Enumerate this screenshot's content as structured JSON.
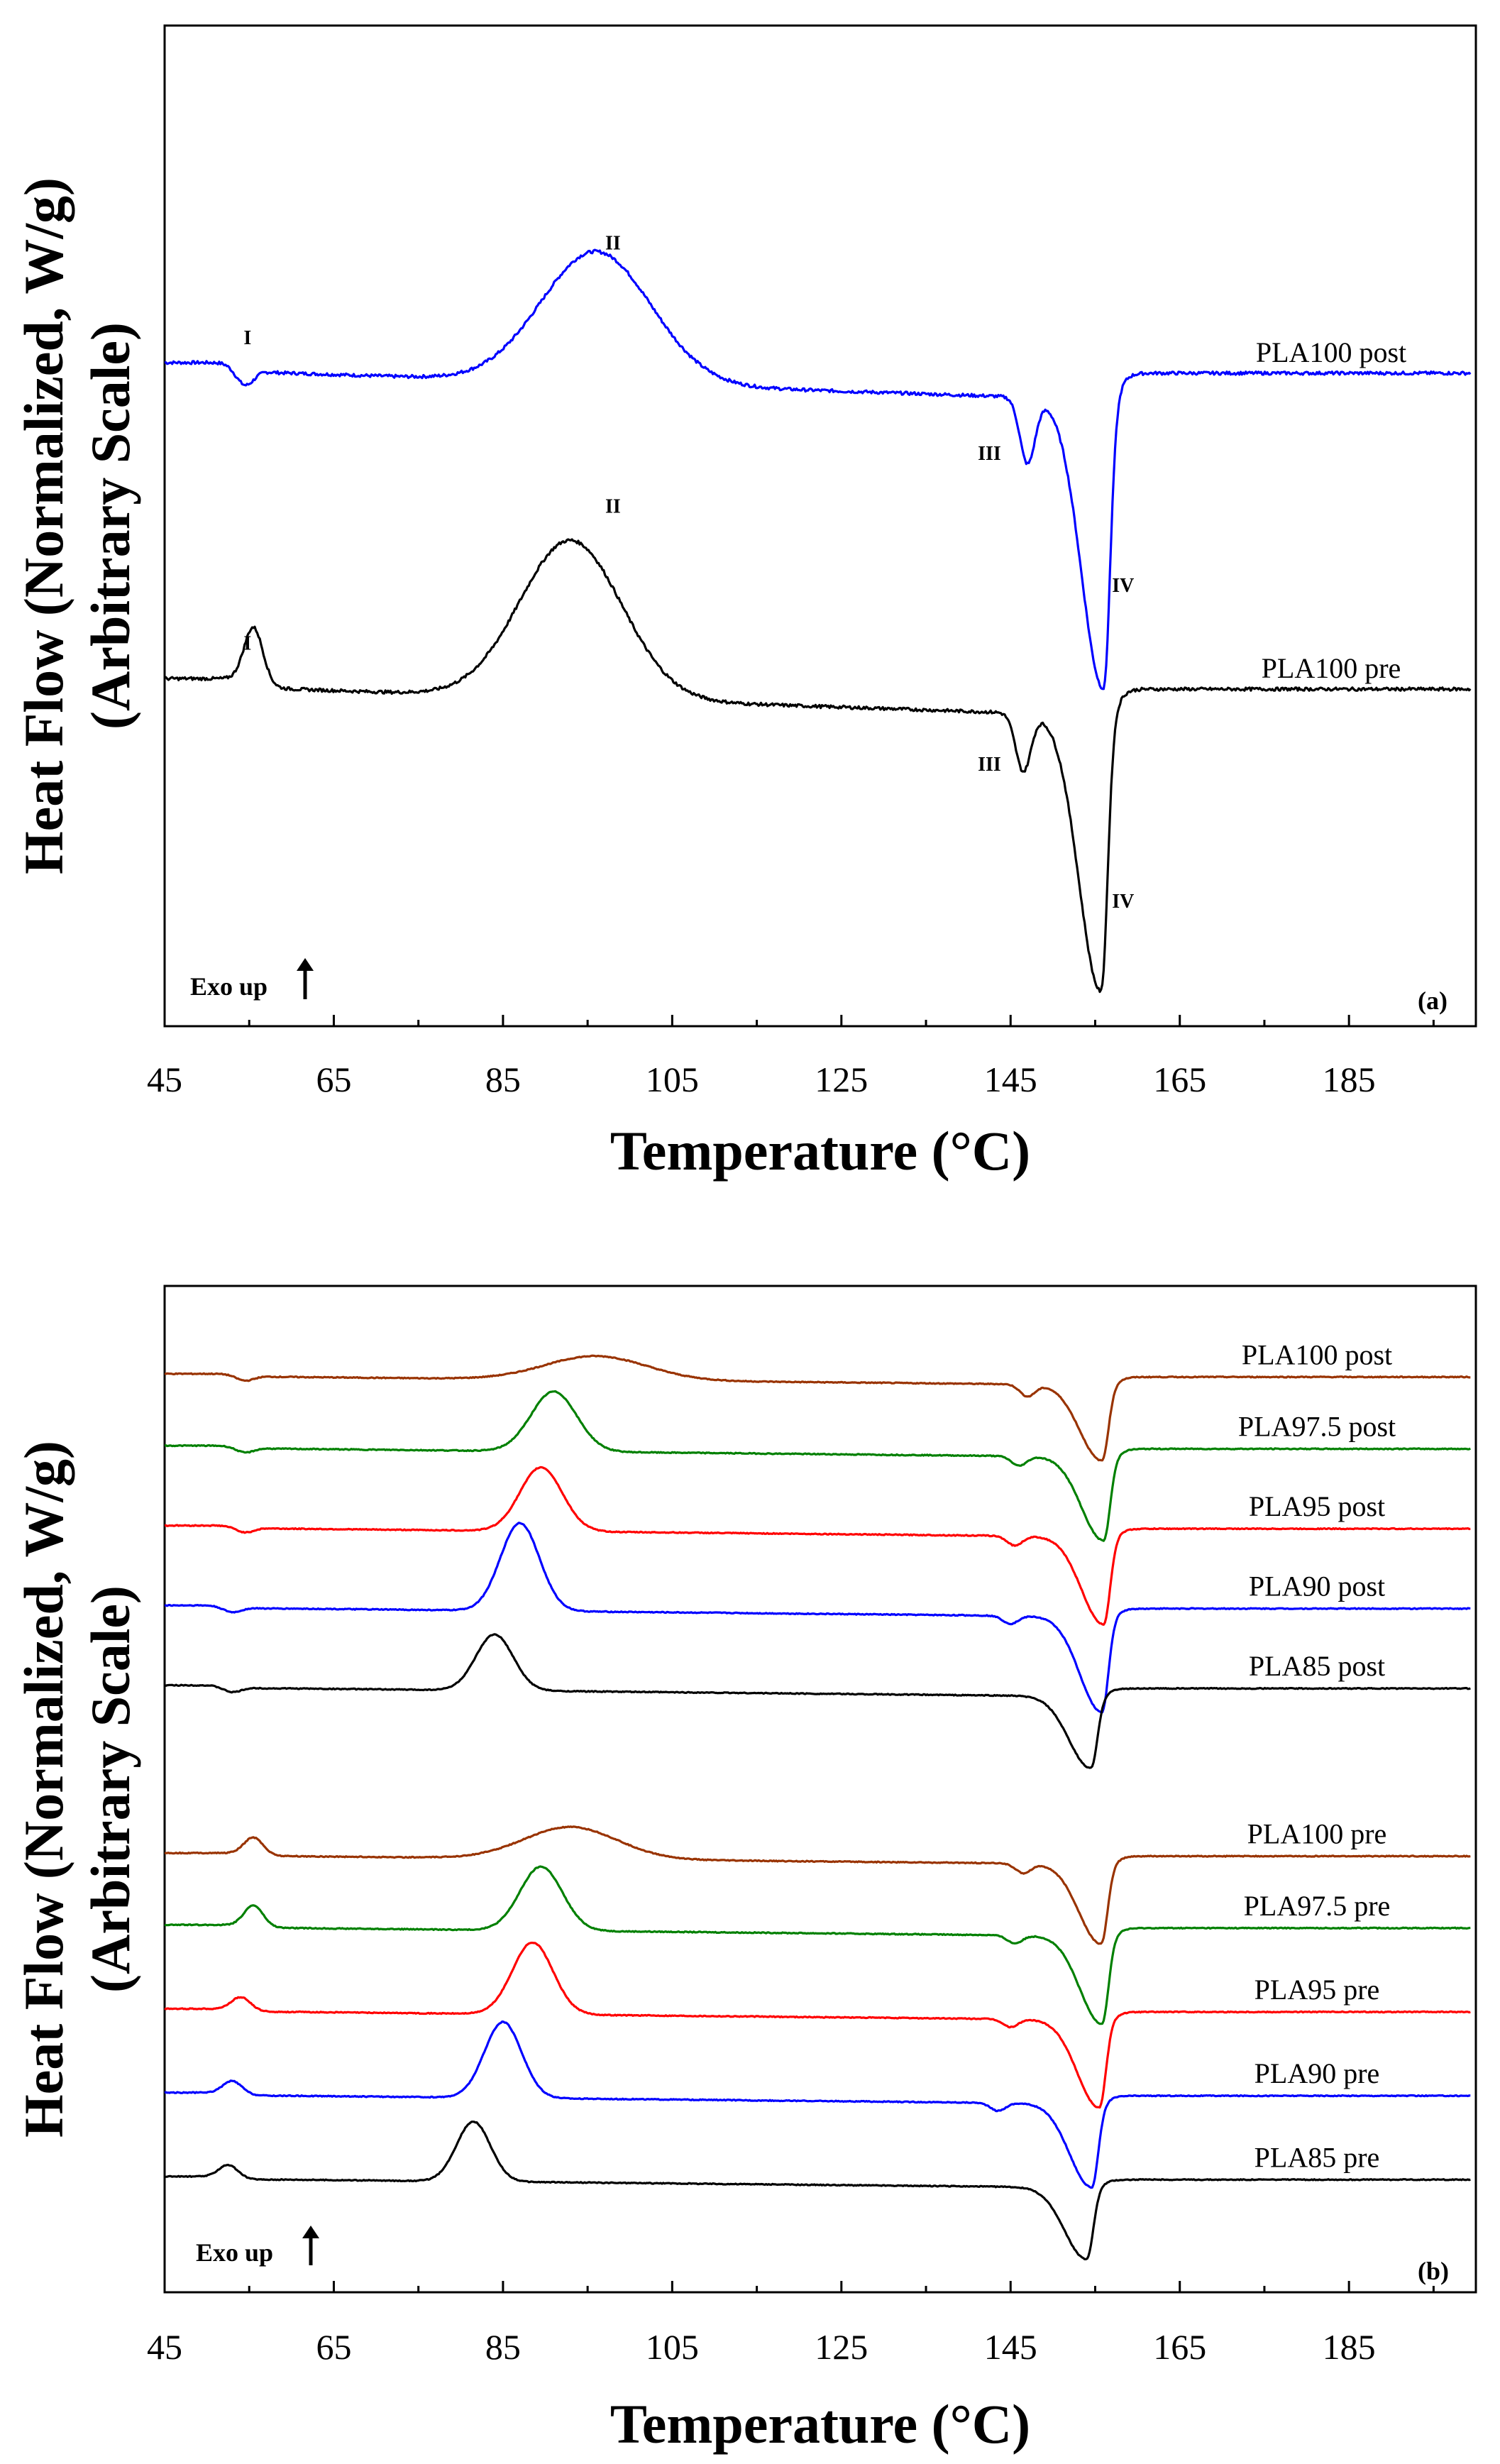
{
  "chart_data": [
    {
      "type": "line",
      "panel": "(a)",
      "xlabel": "Temperature (°C)",
      "ylabel_line1": "Heat Flow (Normalized, W/g)",
      "ylabel_line2": "(Arbitrary Scale)",
      "xlim": [
        45,
        200
      ],
      "xticks": [
        45,
        65,
        85,
        105,
        125,
        145,
        165,
        185
      ],
      "annotation": "Exo up",
      "series": [
        {
          "name": "PLA100 post",
          "color": "#0000ff",
          "offset": 0.62,
          "glass": [
            54.5,
            -0.08
          ],
          "cold": [
            96,
            0.5,
            6.5
          ],
          "m1": [
            147,
            -0.25
          ],
          "m2": [
            156,
            -1.1
          ],
          "baseline": [
            0.0,
            0.0
          ]
        },
        {
          "name": "PLA100 pre",
          "color": "#000000",
          "offset": -0.58,
          "glass": [
            55.5,
            0.2
          ],
          "cold": [
            93,
            0.6,
            6
          ],
          "m1": [
            146.5,
            -0.22
          ],
          "m2": [
            155.7,
            -1.05
          ],
          "baseline": [
            0.0,
            0.0
          ]
        }
      ],
      "peak_labels": [
        {
          "label": "I",
          "x": 54.8,
          "y": 0.69
        },
        {
          "label": "II",
          "x": 98,
          "y": 1.05
        },
        {
          "label": "III",
          "x": 142.5,
          "y": 0.25
        },
        {
          "label": "IV",
          "x": 158.3,
          "y": -0.25
        },
        {
          "label": "I",
          "x": 54.8,
          "y": -0.47
        },
        {
          "label": "II",
          "x": 98,
          "y": 0.05
        },
        {
          "label": "III",
          "x": 142.5,
          "y": -0.93
        },
        {
          "label": "IV",
          "x": 158.3,
          "y": -1.45
        }
      ]
    },
    {
      "type": "line",
      "panel": "(b)",
      "xlabel": "Temperature (°C)",
      "ylabel_line1": "Heat Flow (Normalized, W/g)",
      "ylabel_line2": "(Arbitrary Scale)",
      "xlim": [
        45,
        200
      ],
      "xticks": [
        45,
        65,
        85,
        105,
        125,
        145,
        165,
        185
      ],
      "annotation": "Exo up",
      "series": [
        {
          "name": "PLA100 post",
          "color": "#993300",
          "offset": 4.5,
          "glass": [
            54.5,
            -0.08
          ],
          "cold": [
            96,
            0.3,
            6
          ],
          "m1": [
            147,
            -0.15
          ],
          "m2": [
            155.8,
            -0.95
          ],
          "baseline": [
            0.0,
            0.0
          ]
        },
        {
          "name": "PLA97.5 post",
          "color": "#008000",
          "offset": 3.6,
          "glass": [
            54.5,
            -0.08
          ],
          "cold": [
            91,
            0.75,
            2.7
          ],
          "m1": [
            146,
            -0.12
          ],
          "m2": [
            156,
            -1.05
          ],
          "baseline": [
            0.0,
            0.0
          ]
        },
        {
          "name": "PLA95 post",
          "color": "#ff0000",
          "offset": 2.6,
          "glass": [
            54.5,
            -0.08
          ],
          "cold": [
            89.5,
            0.8,
            2.5
          ],
          "m1": [
            145.5,
            -0.12
          ],
          "m2": [
            156,
            -1.1
          ],
          "baseline": [
            0.0,
            0.0
          ]
        },
        {
          "name": "PLA90 post",
          "color": "#0000ff",
          "offset": 1.6,
          "glass": [
            53,
            -0.08
          ],
          "cold": [
            87,
            1.1,
            2.3
          ],
          "m1": [
            145,
            -0.1
          ],
          "m2": [
            155.8,
            -1.2
          ],
          "baseline": [
            0.0,
            0.0
          ]
        },
        {
          "name": "PLA85 post",
          "color": "#000000",
          "offset": 0.6,
          "glass": [
            53,
            -0.08
          ],
          "cold": [
            84,
            0.7,
            2.2
          ],
          "m1": [
            146,
            0.0
          ],
          "m2": [
            154.5,
            -0.9
          ],
          "baseline": [
            0.0,
            0.0
          ]
        },
        {
          "name": "PLA100 pre",
          "color": "#993300",
          "offset": -1.5,
          "glass": [
            55.5,
            0.2
          ],
          "cold": [
            93,
            0.4,
            5.5
          ],
          "m1": [
            146.5,
            -0.12
          ],
          "m2": [
            155.7,
            -1.0
          ],
          "baseline": [
            0.0,
            0.0
          ]
        },
        {
          "name": "PLA97.5 pre",
          "color": "#008000",
          "offset": -2.4,
          "glass": [
            55.5,
            0.25
          ],
          "cold": [
            89.5,
            0.8,
            2.5
          ],
          "m1": [
            145.5,
            -0.1
          ],
          "m2": [
            155.8,
            -1.1
          ],
          "baseline": [
            0.0,
            0.0
          ]
        },
        {
          "name": "PLA95 pre",
          "color": "#ff0000",
          "offset": -3.45,
          "glass": [
            54,
            0.15
          ],
          "cold": [
            88.5,
            0.9,
            2.4
          ],
          "m1": [
            145,
            -0.1
          ],
          "m2": [
            155.5,
            -1.1
          ],
          "baseline": [
            0.0,
            0.0
          ]
        },
        {
          "name": "PLA90 pre",
          "color": "#0000ff",
          "offset": -4.5,
          "glass": [
            53,
            0.15
          ],
          "cold": [
            85,
            0.95,
            2.2
          ],
          "m1": [
            143.5,
            -0.1
          ],
          "m2": [
            154.6,
            -1.05
          ],
          "baseline": [
            0.0,
            0.0
          ]
        },
        {
          "name": "PLA85 pre",
          "color": "#000000",
          "offset": -5.55,
          "glass": [
            52.5,
            0.15
          ],
          "cold": [
            81.5,
            0.75,
            2.0
          ],
          "m1": [
            145,
            0.0
          ],
          "m2": [
            154,
            -0.9
          ],
          "baseline": [
            0.0,
            0.0
          ]
        }
      ]
    }
  ]
}
